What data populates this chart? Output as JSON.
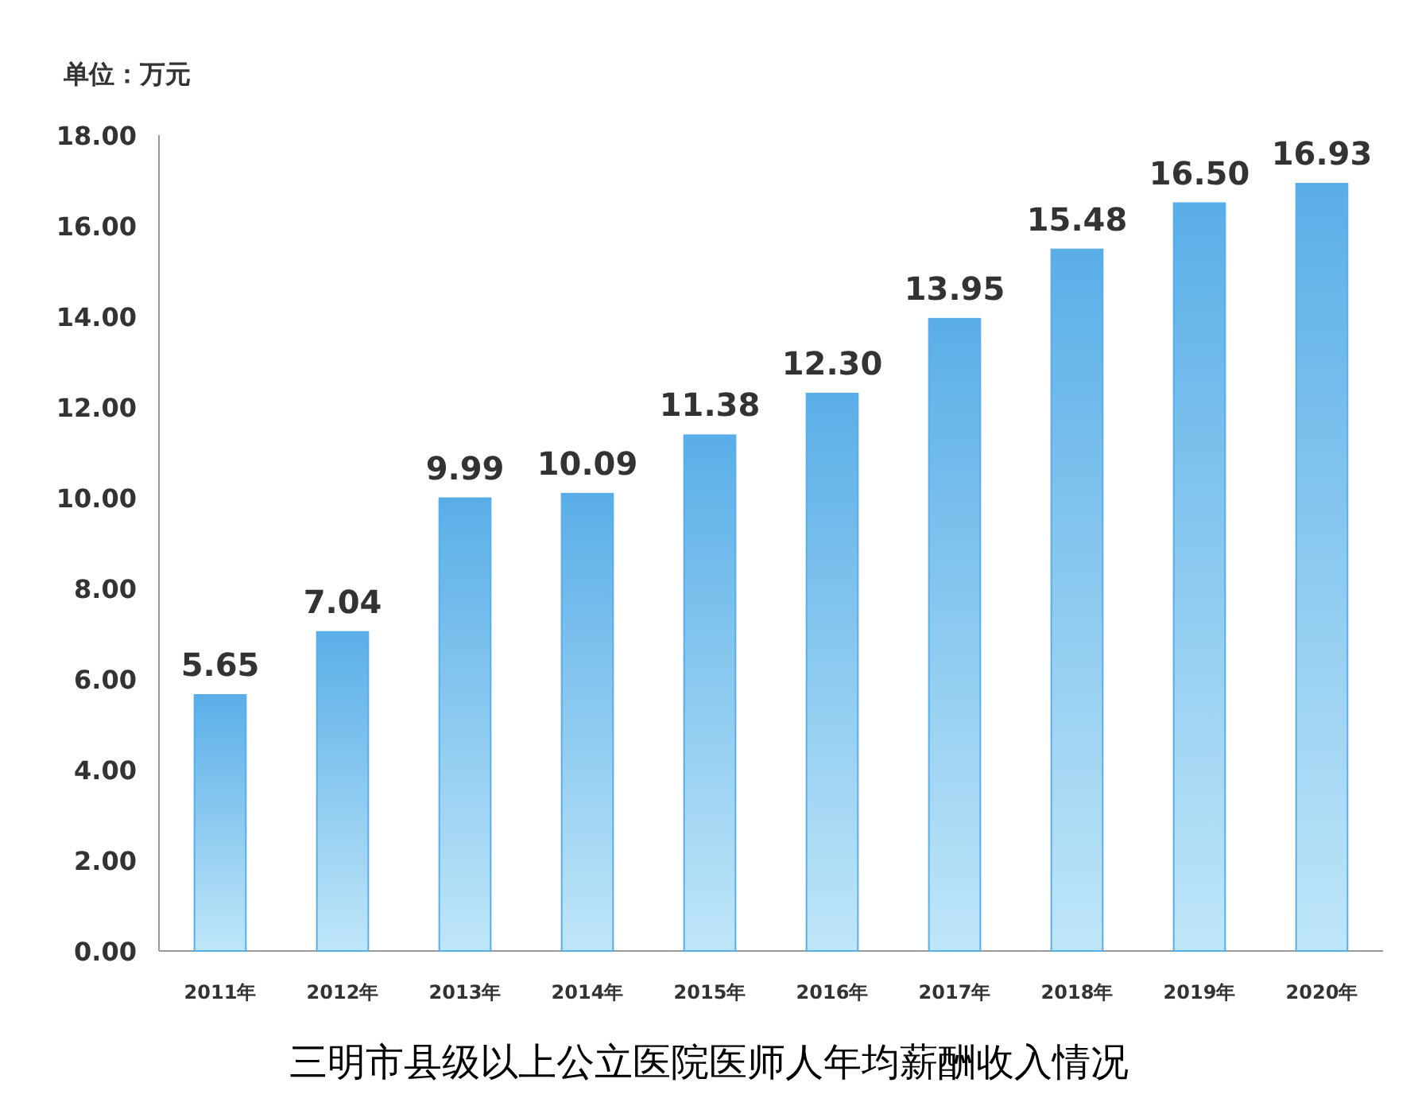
{
  "chart_data": {
    "type": "bar",
    "title": "三明市县级以上公立医院医师人年均薪酬收入情况",
    "ylabel": "单位：万元",
    "categories": [
      "2011年",
      "2012年",
      "2013年",
      "2014年",
      "2015年",
      "2016年",
      "2017年",
      "2018年",
      "2019年",
      "2020年"
    ],
    "values": [
      5.65,
      7.04,
      9.99,
      10.09,
      11.38,
      12.3,
      13.95,
      15.48,
      16.5,
      16.93
    ],
    "value_labels": [
      "5.65",
      "7.04",
      "9.99",
      "10.09",
      "11.38",
      "12.30",
      "13.95",
      "15.48",
      "16.50",
      "16.93"
    ],
    "color": "#5aaee8",
    "ylim": [
      0,
      18
    ],
    "yticks": [
      {
        "value": 0,
        "label": "0.00"
      },
      {
        "value": 2,
        "label": "2.00"
      },
      {
        "value": 4,
        "label": "4.00"
      },
      {
        "value": 6,
        "label": "6.00"
      },
      {
        "value": 8,
        "label": "8.00"
      },
      {
        "value": 10,
        "label": "10.00"
      },
      {
        "value": 12,
        "label": "12.00"
      },
      {
        "value": 14,
        "label": "14.00"
      },
      {
        "value": 16,
        "label": "16.00"
      },
      {
        "value": 18,
        "label": "18.00"
      }
    ],
    "grid": false
  }
}
